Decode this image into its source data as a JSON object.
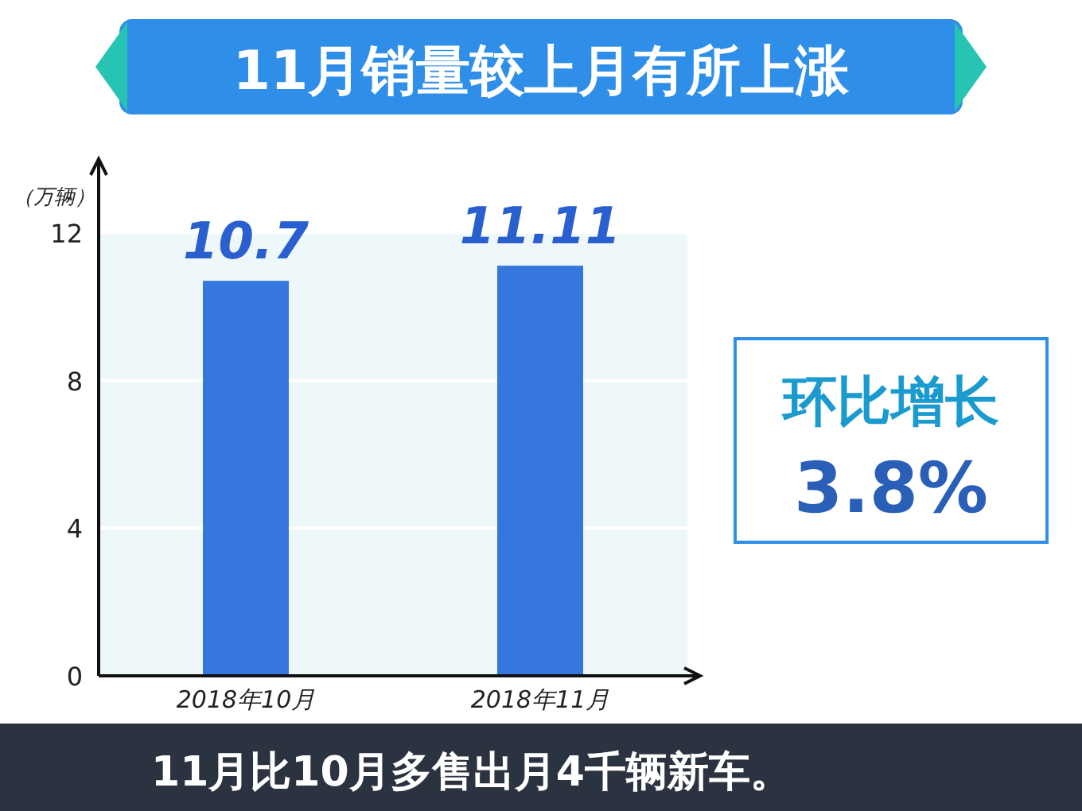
{
  "chart_data": {
    "type": "bar",
    "title": "11月销量较上月有所上涨",
    "ylabel": "（万辆）",
    "categories": [
      "2018年10月",
      "2018年11月"
    ],
    "values": [
      10.7,
      11.11
    ],
    "color": "#3577dd",
    "data_labels": true,
    "ylim": [
      0,
      14
    ],
    "bands": [
      {
        "axis": "y",
        "from": 0,
        "to": 12,
        "color": "#eef7f9"
      }
    ],
    "yticks": [
      0,
      4,
      8,
      12
    ],
    "grid": "y",
    "annotations": [
      "环比增长",
      "3.8%",
      "11月比10月多售出月4千辆新车。"
    ]
  }
}
